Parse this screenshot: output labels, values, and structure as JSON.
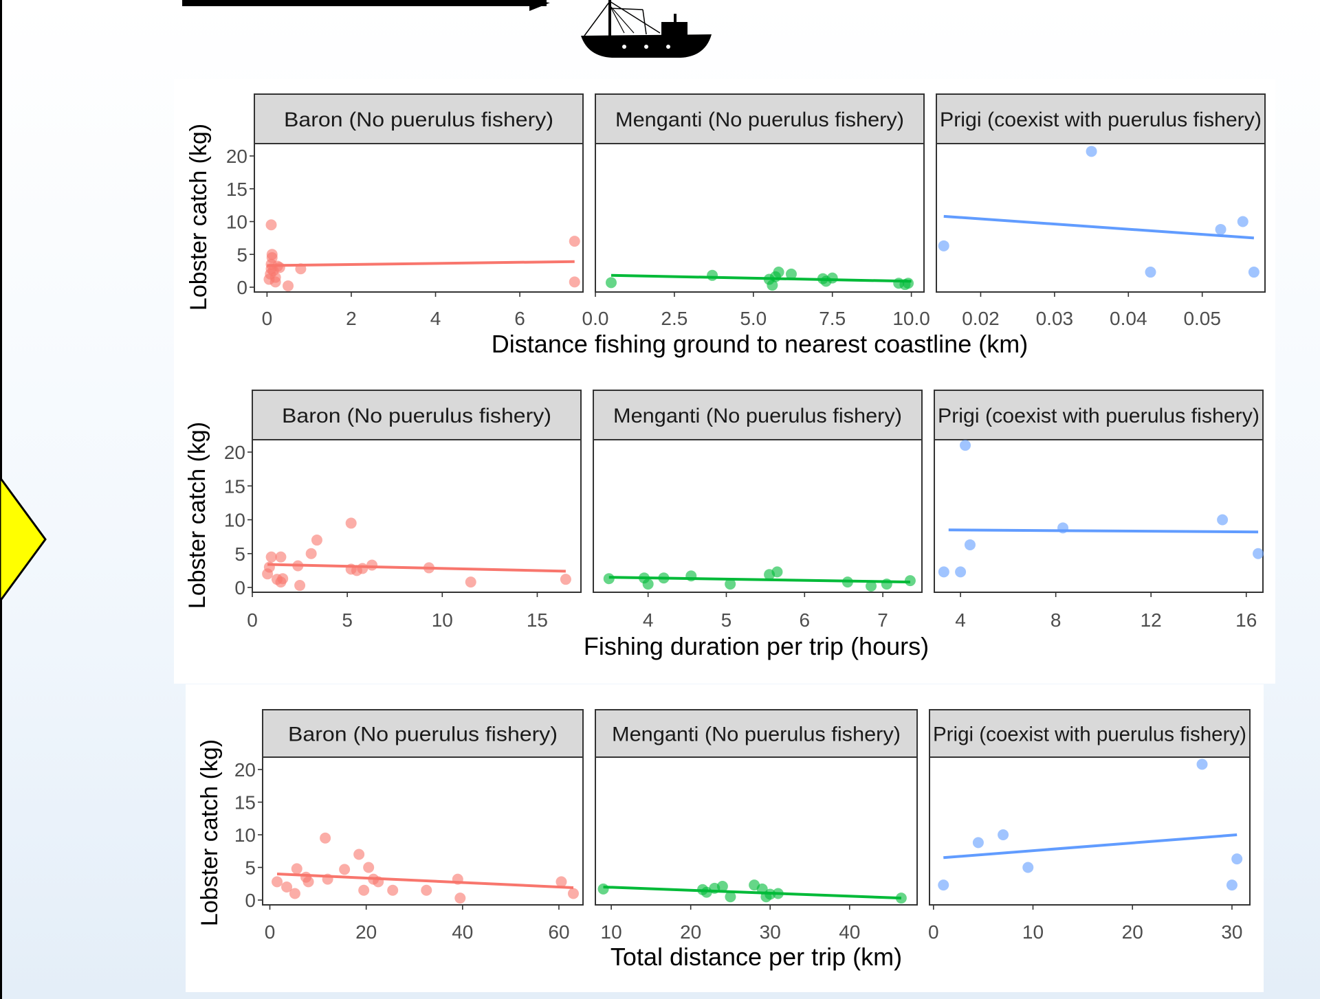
{
  "chart_data": [
    {
      "type": "scatter",
      "xlabel": "Distance fishing ground to nearest coastline (km)",
      "ylabel": "Lobster catch (kg)",
      "yticks": [
        0,
        5,
        10,
        15,
        20
      ],
      "facets": [
        {
          "title": "Baron  (No puerulus fishery)",
          "color": "#F8766D",
          "xlim": [
            -0.3,
            7.5
          ],
          "xticks": [
            {
              "v": 0,
              "label": "0"
            },
            {
              "v": 2,
              "label": "2"
            },
            {
              "v": 4,
              "label": "4"
            },
            {
              "v": 6,
              "label": "6"
            }
          ],
          "points": [
            [
              0.05,
              1.2
            ],
            [
              0.08,
              2.0
            ],
            [
              0.1,
              2.8
            ],
            [
              0.1,
              3.5
            ],
            [
              0.12,
              4.5
            ],
            [
              0.12,
              5.0
            ],
            [
              0.1,
              9.5
            ],
            [
              0.15,
              2.5
            ],
            [
              0.2,
              1.5
            ],
            [
              0.25,
              3.2
            ],
            [
              0.2,
              0.8
            ],
            [
              0.3,
              3.0
            ],
            [
              0.5,
              0.2
            ],
            [
              0.8,
              2.8
            ],
            [
              7.3,
              7.0
            ],
            [
              7.3,
              0.8
            ]
          ],
          "trend": [
            [
              0.0,
              3.3
            ],
            [
              7.3,
              3.9
            ]
          ]
        },
        {
          "title": "Menganti (No puerulus fishery)",
          "color": "#00BA38",
          "xlim": [
            0,
            10.4
          ],
          "xticks": [
            {
              "v": 0,
              "label": "0.0"
            },
            {
              "v": 2.5,
              "label": "2.5"
            },
            {
              "v": 5,
              "label": "5.0"
            },
            {
              "v": 7.5,
              "label": "7.5"
            },
            {
              "v": 10,
              "label": "10.0"
            }
          ],
          "points": [
            [
              0.5,
              0.7
            ],
            [
              3.7,
              1.8
            ],
            [
              5.5,
              1.2
            ],
            [
              5.6,
              0.3
            ],
            [
              5.7,
              1.6
            ],
            [
              5.8,
              2.3
            ],
            [
              6.2,
              2.0
            ],
            [
              7.2,
              1.3
            ],
            [
              7.3,
              0.9
            ],
            [
              7.5,
              1.4
            ],
            [
              9.6,
              0.6
            ],
            [
              9.8,
              0.4
            ],
            [
              9.9,
              0.6
            ]
          ],
          "trend": [
            [
              0.5,
              1.8
            ],
            [
              10.0,
              0.9
            ]
          ]
        },
        {
          "title": "Prigi (coexist with puerulus fishery)",
          "color": "#619CFF",
          "xlim": [
            0.014,
            0.0585
          ],
          "xticks": [
            {
              "v": 0.02,
              "label": "0.02"
            },
            {
              "v": 0.03,
              "label": "0.03"
            },
            {
              "v": 0.04,
              "label": "0.04"
            },
            {
              "v": 0.05,
              "label": "0.05"
            }
          ],
          "points": [
            [
              0.015,
              6.3
            ],
            [
              0.035,
              20.7
            ],
            [
              0.043,
              2.3
            ],
            [
              0.0525,
              8.8
            ],
            [
              0.0555,
              10.0
            ],
            [
              0.057,
              2.3
            ]
          ],
          "trend": [
            [
              0.015,
              10.8
            ],
            [
              0.057,
              7.5
            ]
          ]
        }
      ]
    },
    {
      "type": "scatter",
      "xlabel": "Fishing duration per trip (hours)",
      "ylabel": "Lobster catch (kg)",
      "yticks": [
        0,
        5,
        10,
        15,
        20
      ],
      "facets": [
        {
          "title": "Baron  (No puerulus fishery)",
          "color": "#F8766D",
          "xlim": [
            0,
            17.3
          ],
          "xticks": [
            {
              "v": 0,
              "label": "0"
            },
            {
              "v": 5,
              "label": "5"
            },
            {
              "v": 10,
              "label": "10"
            },
            {
              "v": 15,
              "label": "15"
            }
          ],
          "points": [
            [
              0.8,
              2.0
            ],
            [
              0.9,
              3.0
            ],
            [
              1.0,
              4.5
            ],
            [
              1.3,
              1.2
            ],
            [
              1.5,
              0.8
            ],
            [
              1.5,
              4.5
            ],
            [
              1.6,
              1.3
            ],
            [
              2.4,
              3.2
            ],
            [
              2.5,
              0.3
            ],
            [
              3.1,
              5.0
            ],
            [
              3.4,
              7.0
            ],
            [
              5.2,
              9.5
            ],
            [
              5.2,
              2.7
            ],
            [
              5.5,
              2.5
            ],
            [
              5.8,
              2.8
            ],
            [
              6.3,
              3.3
            ],
            [
              9.3,
              2.9
            ],
            [
              11.5,
              0.8
            ],
            [
              16.5,
              1.2
            ]
          ],
          "trend": [
            [
              0.8,
              3.4
            ],
            [
              16.5,
              2.4
            ]
          ]
        },
        {
          "title": "Menganti (No puerulus fishery)",
          "color": "#00BA38",
          "xlim": [
            3.3,
            7.5
          ],
          "xticks": [
            {
              "v": 4,
              "label": "4"
            },
            {
              "v": 5,
              "label": "5"
            },
            {
              "v": 6,
              "label": "6"
            },
            {
              "v": 7,
              "label": "7"
            }
          ],
          "points": [
            [
              3.5,
              1.3
            ],
            [
              3.95,
              1.4
            ],
            [
              4.0,
              0.5
            ],
            [
              4.2,
              1.4
            ],
            [
              4.55,
              1.7
            ],
            [
              5.05,
              0.5
            ],
            [
              5.55,
              1.9
            ],
            [
              5.65,
              2.3
            ],
            [
              6.55,
              0.8
            ],
            [
              6.85,
              0.2
            ],
            [
              7.05,
              0.5
            ],
            [
              7.35,
              1.0
            ]
          ],
          "trend": [
            [
              3.5,
              1.5
            ],
            [
              7.35,
              0.8
            ]
          ]
        },
        {
          "title": "Prigi (coexist with puerulus fishery)",
          "color": "#619CFF",
          "xlim": [
            2.9,
            16.7
          ],
          "xticks": [
            {
              "v": 4,
              "label": "4"
            },
            {
              "v": 8,
              "label": "8"
            },
            {
              "v": 12,
              "label": "12"
            },
            {
              "v": 16,
              "label": "16"
            }
          ],
          "points": [
            [
              3.3,
              2.3
            ],
            [
              4.0,
              2.3
            ],
            [
              4.2,
              21.0
            ],
            [
              4.4,
              6.3
            ],
            [
              8.3,
              8.8
            ],
            [
              15.0,
              10.0
            ],
            [
              16.5,
              5.0
            ]
          ],
          "trend": [
            [
              3.5,
              8.5
            ],
            [
              16.5,
              8.2
            ]
          ]
        }
      ]
    },
    {
      "type": "scatter",
      "xlabel": "Total distance per trip (km)",
      "ylabel": "Lobster catch (kg)",
      "yticks": [
        0,
        5,
        10,
        15,
        20
      ],
      "facets": [
        {
          "title": "Baron  (No puerulus fishery)",
          "color": "#F8766D",
          "xlim": [
            -1.5,
            65
          ],
          "xticks": [
            {
              "v": 0,
              "label": "0"
            },
            {
              "v": 20,
              "label": "20"
            },
            {
              "v": 40,
              "label": "40"
            },
            {
              "v": 60,
              "label": "60"
            }
          ],
          "points": [
            [
              1.5,
              2.8
            ],
            [
              3.5,
              2.0
            ],
            [
              5.2,
              1.0
            ],
            [
              5.6,
              4.8
            ],
            [
              7.5,
              3.5
            ],
            [
              8.0,
              2.8
            ],
            [
              11.5,
              9.5
            ],
            [
              12.0,
              3.2
            ],
            [
              15.5,
              4.7
            ],
            [
              18.5,
              7.0
            ],
            [
              19.5,
              1.5
            ],
            [
              20.5,
              5.0
            ],
            [
              21.5,
              3.2
            ],
            [
              22.5,
              2.8
            ],
            [
              25.5,
              1.5
            ],
            [
              32.5,
              1.5
            ],
            [
              39.0,
              3.2
            ],
            [
              39.5,
              0.3
            ],
            [
              60.5,
              2.8
            ],
            [
              63.0,
              1.0
            ]
          ],
          "trend": [
            [
              1.5,
              4.0
            ],
            [
              63.0,
              1.9
            ]
          ]
        },
        {
          "title": "Menganti (No puerulus fishery)",
          "color": "#00BA38",
          "xlim": [
            8,
            48.5
          ],
          "xticks": [
            {
              "v": 10,
              "label": "10"
            },
            {
              "v": 20,
              "label": "20"
            },
            {
              "v": 30,
              "label": "30"
            },
            {
              "v": 40,
              "label": "40"
            }
          ],
          "points": [
            [
              9.0,
              1.7
            ],
            [
              21.5,
              1.6
            ],
            [
              22.0,
              1.2
            ],
            [
              23.0,
              1.8
            ],
            [
              24.0,
              2.1
            ],
            [
              25.0,
              0.5
            ],
            [
              28.0,
              2.3
            ],
            [
              29.0,
              1.7
            ],
            [
              29.5,
              0.5
            ],
            [
              30.0,
              0.9
            ],
            [
              31.0,
              1.0
            ],
            [
              46.5,
              0.3
            ]
          ],
          "trend": [
            [
              9.0,
              2.0
            ],
            [
              46.5,
              0.3
            ]
          ]
        },
        {
          "title": "Prigi (coexist with puerulus fishery)",
          "color": "#619CFF",
          "xlim": [
            -0.4,
            31.8
          ],
          "xticks": [
            {
              "v": 0,
              "label": "0"
            },
            {
              "v": 10,
              "label": "10"
            },
            {
              "v": 20,
              "label": "20"
            },
            {
              "v": 30,
              "label": "30"
            }
          ],
          "points": [
            [
              1.0,
              2.3
            ],
            [
              4.5,
              8.8
            ],
            [
              7.0,
              10.0
            ],
            [
              9.5,
              5.0
            ],
            [
              27.0,
              20.8
            ],
            [
              30.0,
              2.3
            ],
            [
              30.5,
              6.3
            ]
          ],
          "trend": [
            [
              1.0,
              6.5
            ],
            [
              30.5,
              10.0
            ]
          ]
        }
      ]
    }
  ]
}
